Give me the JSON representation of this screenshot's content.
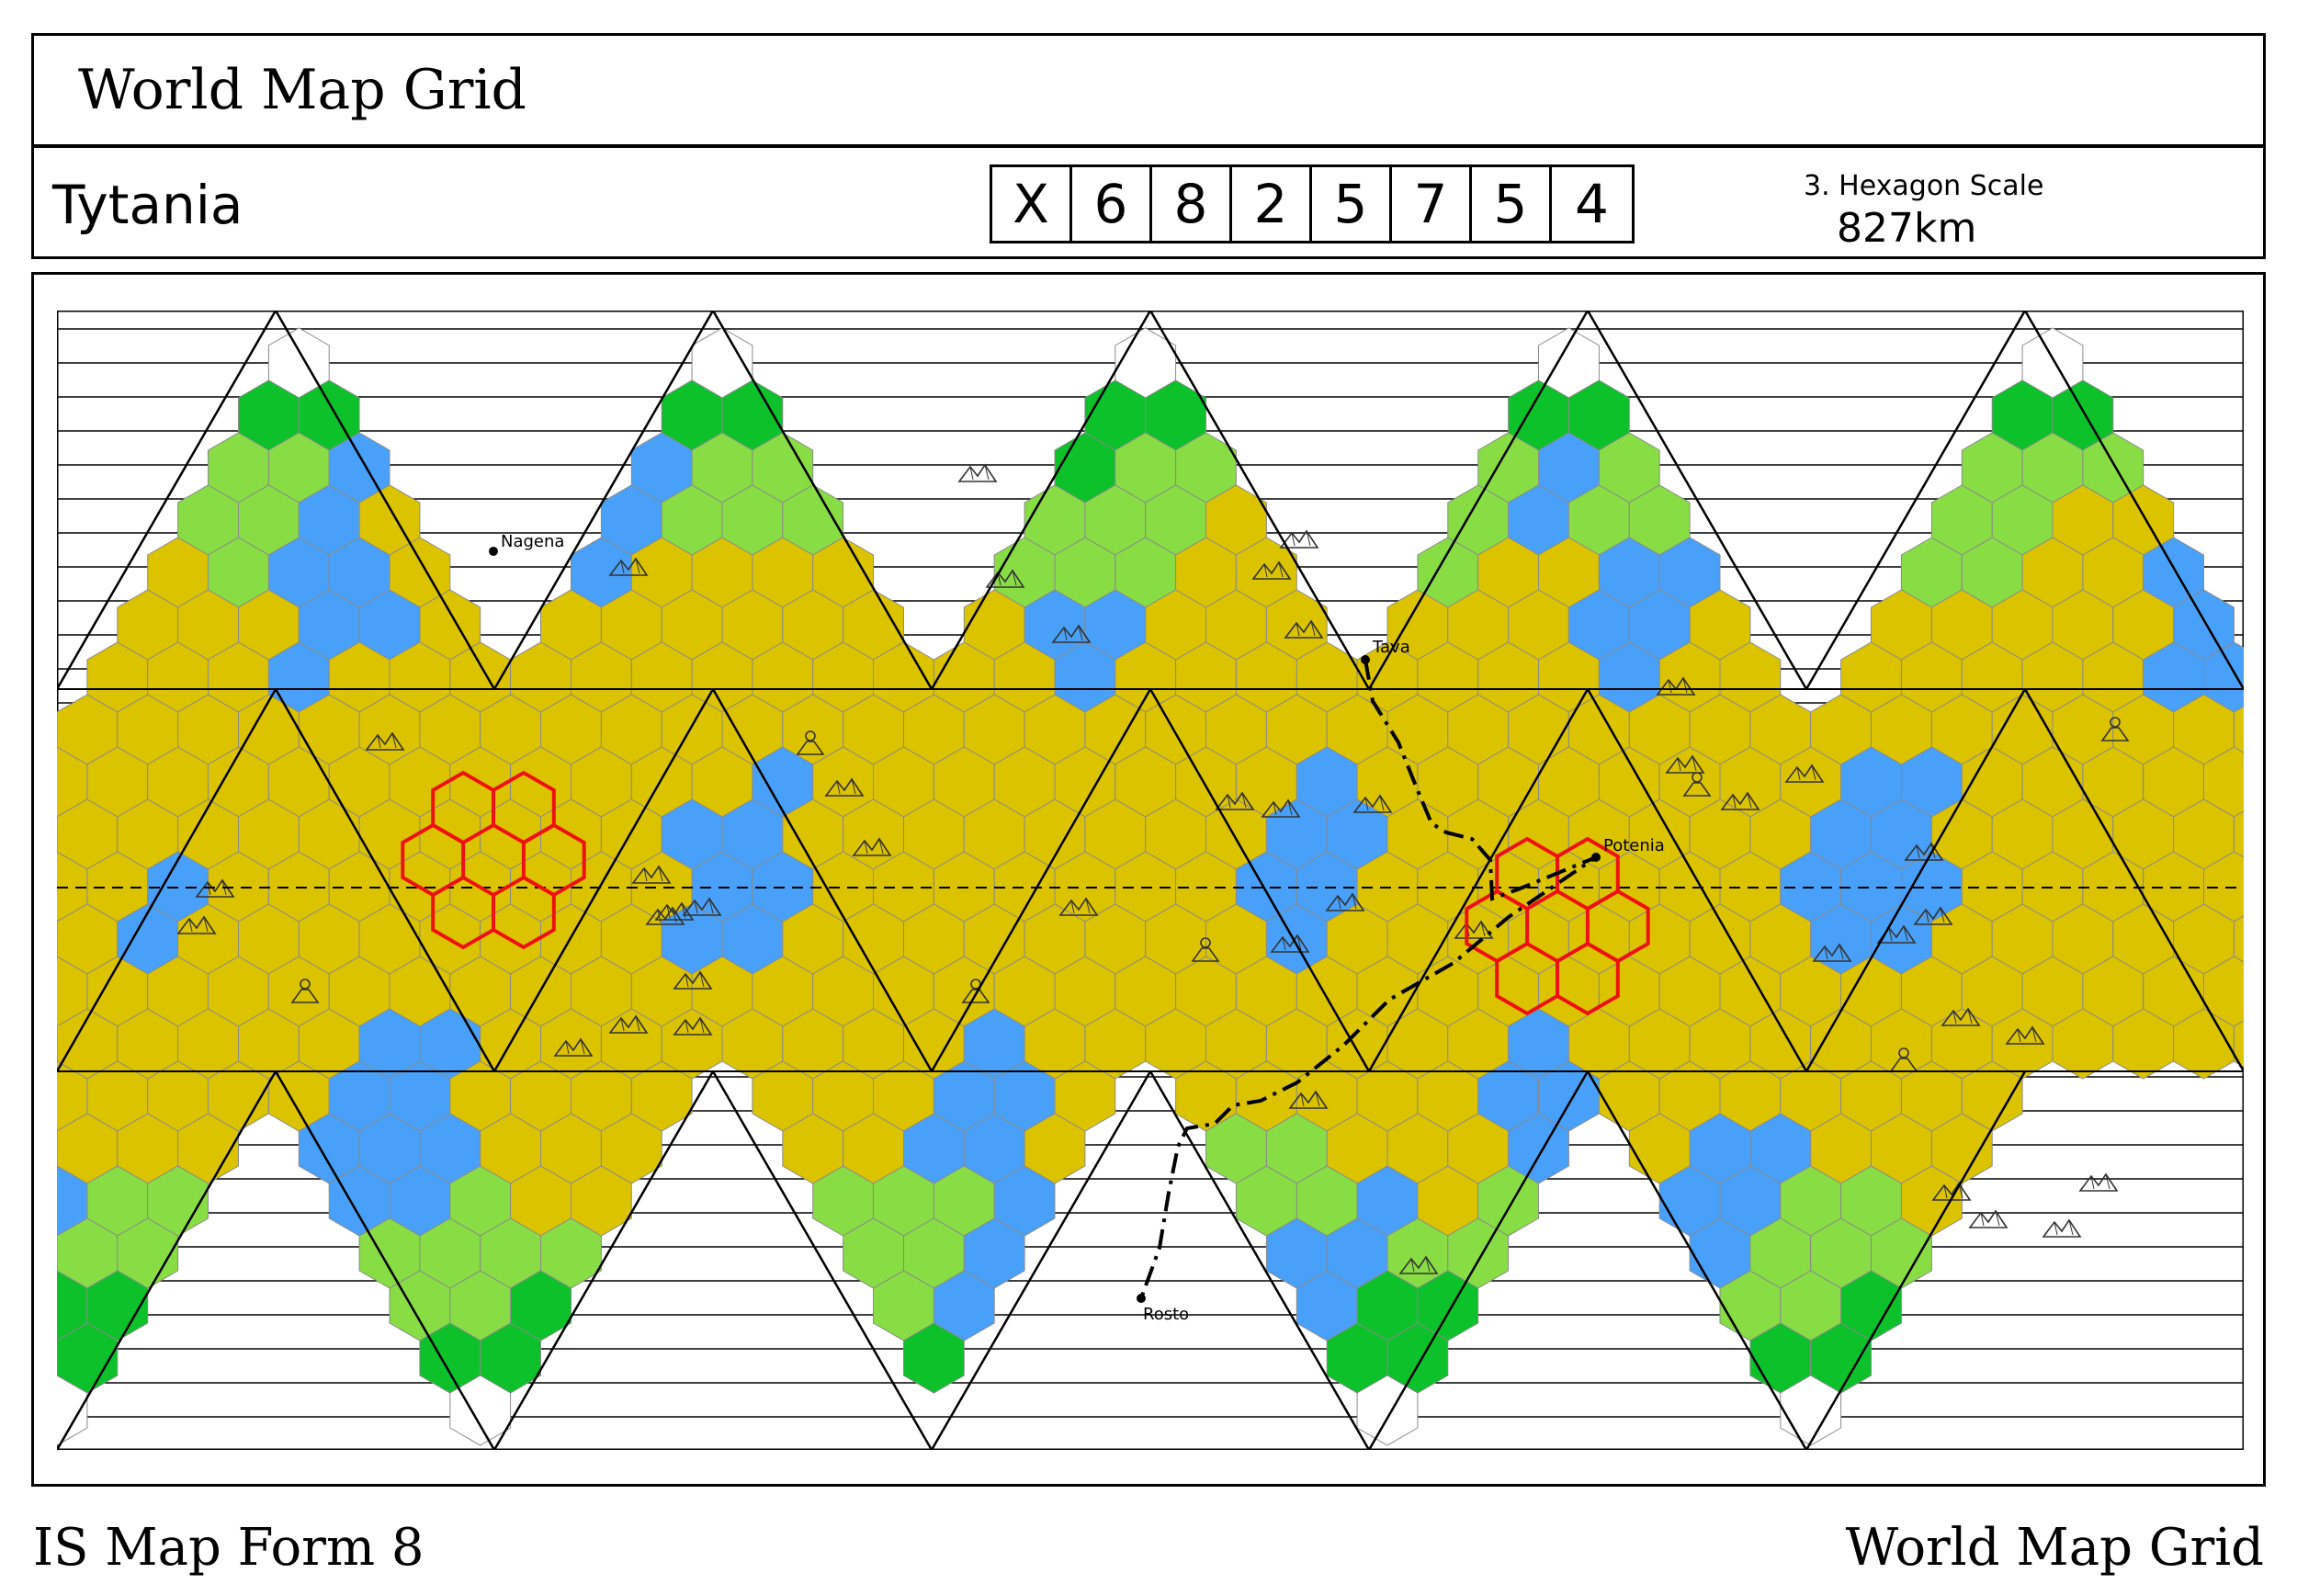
{
  "header": {
    "title": "World Map Grid"
  },
  "world": {
    "name": "Tytania",
    "uwp": [
      "X",
      "6",
      "8",
      "2",
      "5",
      "7",
      "5",
      "4"
    ],
    "scale_label": "3. Hexagon Scale",
    "scale_value": "827km"
  },
  "footer": {
    "left": "IS Map Form 8",
    "right": "World Map Grid"
  },
  "terrain_colors": {
    "desert": "#dcc300",
    "water": "#48a0f8",
    "grassland": "#88dd44",
    "forest": "#0cc12a",
    "ice": "#ffffff",
    "highlight": "#ee1111"
  },
  "locations": [
    {
      "name": "Nagena"
    },
    {
      "name": "Tava"
    },
    {
      "name": "Potenia"
    },
    {
      "name": "Rosto"
    }
  ],
  "icons": [
    "mountain-icon",
    "volcano-icon"
  ]
}
